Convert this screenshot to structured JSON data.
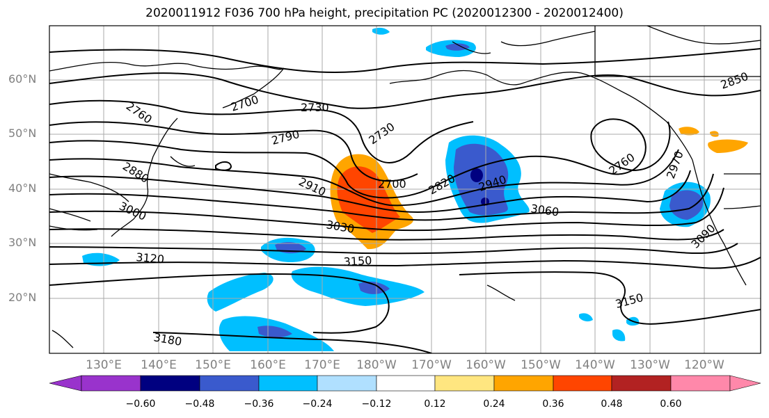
{
  "title": "2020011912 F036 700 hPa height, precipitation PC (2020012300 - 2020012400)",
  "latitude_labels": [
    "60°N",
    "50°N",
    "40°N",
    "30°N",
    "20°N"
  ],
  "longitude_labels": [
    "130°E",
    "140°E",
    "150°E",
    "160°E",
    "170°E",
    "180°W",
    "170°W",
    "160°W",
    "150°W",
    "140°W",
    "130°W",
    "120°W"
  ],
  "contour_labels": [
    "2700",
    "2730",
    "2760",
    "2790",
    "2730",
    "2850",
    "2880",
    "2910",
    "2700",
    "2820",
    "2940",
    "3000",
    "3030",
    "3060",
    "2760",
    "2970",
    "3090",
    "3120",
    "3150",
    "3150",
    "3180"
  ],
  "colorbar": {
    "ticks": [
      "−0.60",
      "−0.48",
      "−0.36",
      "−0.24",
      "−0.12",
      "0.12",
      "0.24",
      "0.36",
      "0.48",
      "0.60"
    ],
    "colors": [
      "#9933cc",
      "#000080",
      "#3a5acd",
      "#00bfff",
      "#b0e0ff",
      "#ffffff",
      "#ffe680",
      "#ffa500",
      "#ff4500",
      "#b22222",
      "#ff88aa"
    ]
  }
}
